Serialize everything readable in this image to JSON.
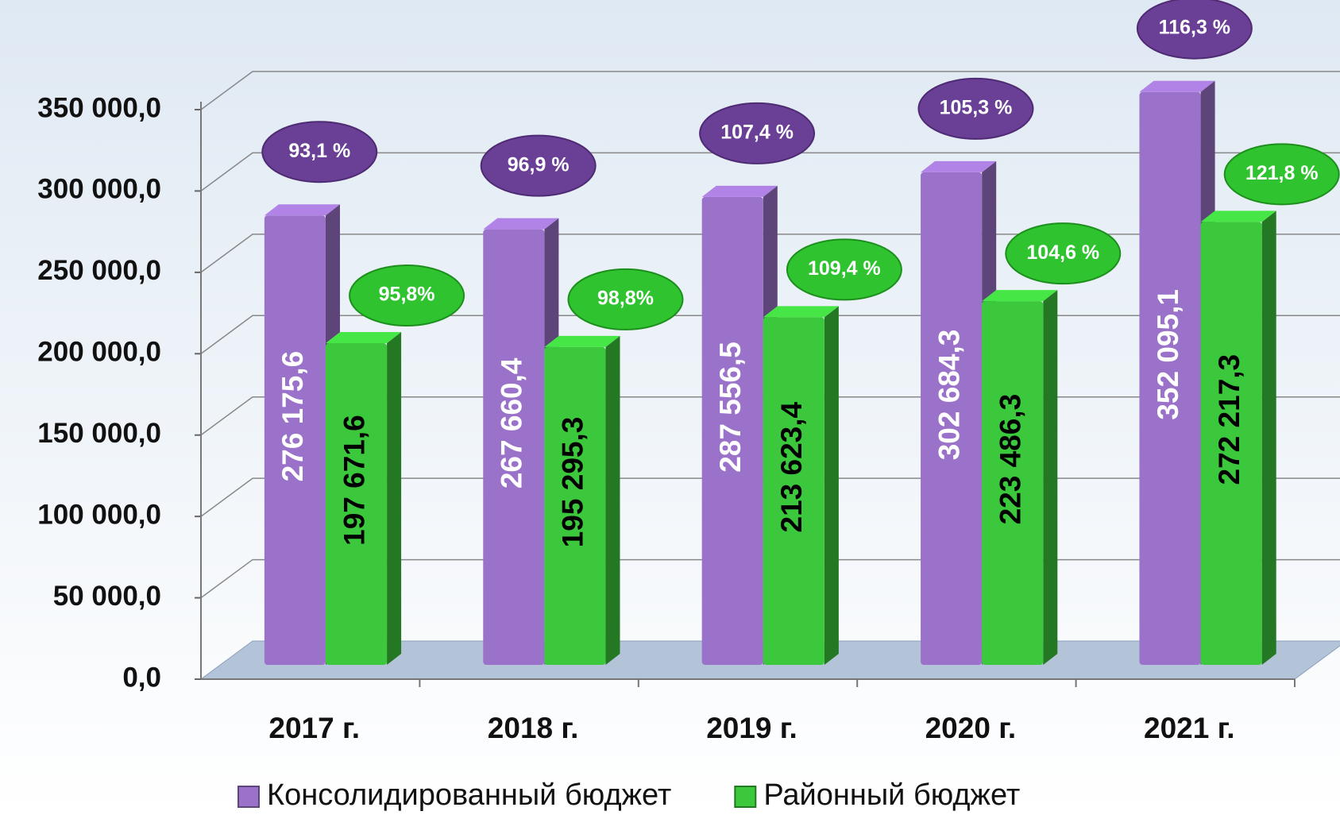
{
  "chart_data": {
    "type": "bar",
    "categories": [
      "2017 г.",
      "2018 г.",
      "2019 г.",
      "2020 г.",
      "2021 г."
    ],
    "series": [
      {
        "name": "Консолидированный бюджет",
        "color": "#9b72c9",
        "values": [
          276175.6,
          267660.4,
          287556.5,
          302684.3,
          352095.1
        ],
        "value_labels": [
          "276 175,6",
          "267 660,4",
          "287 556,5",
          "302 684,3",
          "352 095,1"
        ],
        "annotations": [
          "93,1 %",
          "96,9 %",
          "107,4 %",
          "105,3 %",
          "116,3 %"
        ]
      },
      {
        "name": "Районный бюджет",
        "color": "#3cc83c",
        "values": [
          197671.6,
          195295.3,
          213623.4,
          223486.3,
          272217.3
        ],
        "value_labels": [
          "197 671,6",
          "195 295,3",
          "213 623,4",
          "223 486,3",
          "272 217,3"
        ],
        "annotations": [
          "95,8%",
          "98,8%",
          "109,4 %",
          "104,6 %",
          "121,8 %"
        ]
      }
    ],
    "ylim": [
      0,
      350000
    ],
    "yticks": [
      {
        "value": 0,
        "label": "0,0"
      },
      {
        "value": 50000,
        "label": "50 000,0"
      },
      {
        "value": 100000,
        "label": "100 000,0"
      },
      {
        "value": 150000,
        "label": "150 000,0"
      },
      {
        "value": 200000,
        "label": "200 000,0"
      },
      {
        "value": 250000,
        "label": "250 000,0"
      },
      {
        "value": 300000,
        "label": "300 000,0"
      },
      {
        "value": 350000,
        "label": "350 000,0"
      }
    ],
    "grid": true,
    "legend": "bottom"
  }
}
